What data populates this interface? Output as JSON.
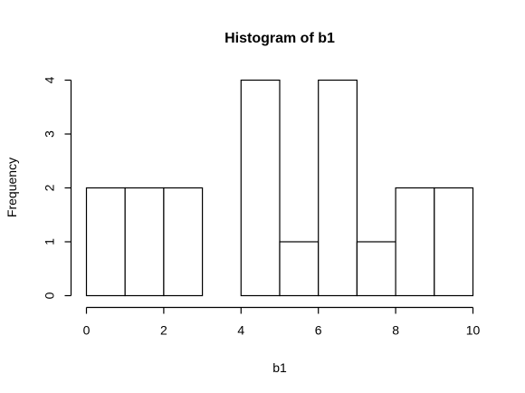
{
  "chart_data": {
    "type": "bar",
    "title": "Histogram of b1",
    "xlabel": "b1",
    "ylabel": "Frequency",
    "bins": [
      {
        "from": 0,
        "to": 1,
        "count": 2
      },
      {
        "from": 1,
        "to": 2,
        "count": 2
      },
      {
        "from": 2,
        "to": 3,
        "count": 2
      },
      {
        "from": 3,
        "to": 4,
        "count": 0
      },
      {
        "from": 4,
        "to": 5,
        "count": 4
      },
      {
        "from": 5,
        "to": 6,
        "count": 1
      },
      {
        "from": 6,
        "to": 7,
        "count": 4
      },
      {
        "from": 7,
        "to": 8,
        "count": 1
      },
      {
        "from": 8,
        "to": 9,
        "count": 2
      },
      {
        "from": 9,
        "to": 10,
        "count": 2
      }
    ],
    "xlim": [
      0,
      10
    ],
    "ylim": [
      0,
      4
    ],
    "xticks": [
      0,
      2,
      4,
      6,
      8,
      10
    ],
    "yticks": [
      0,
      1,
      2,
      3,
      4
    ],
    "grid": false
  }
}
